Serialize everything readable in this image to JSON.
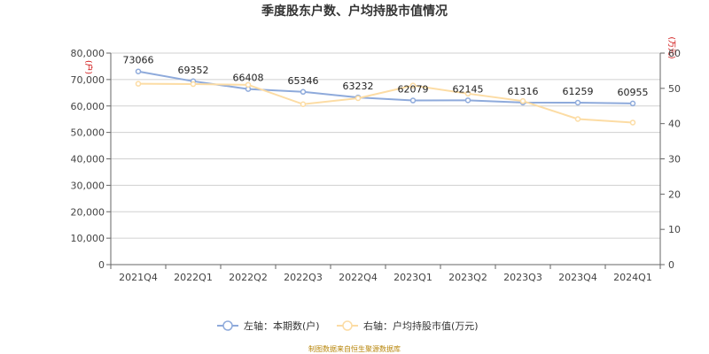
{
  "chart_data": {
    "type": "line",
    "title": "季度股东户数、户均持股市值情况",
    "categories": [
      "2021Q4",
      "2022Q1",
      "2022Q2",
      "2022Q3",
      "2022Q4",
      "2023Q1",
      "2023Q2",
      "2023Q3",
      "2023Q4",
      "2024Q1"
    ],
    "left_axis": {
      "unit": "(户)",
      "ylim": [
        0,
        80000
      ],
      "ticks": [
        "0",
        "10,000",
        "20,000",
        "30,000",
        "40,000",
        "50,000",
        "60,000",
        "70,000",
        "80,000"
      ]
    },
    "right_axis": {
      "unit": "(万元)",
      "ylim": [
        0,
        60
      ],
      "ticks": [
        "0",
        "10",
        "20",
        "30",
        "40",
        "50",
        "60"
      ]
    },
    "series": [
      {
        "name": "左轴：本期数(户)",
        "axis": "left",
        "color": "#8eaadb",
        "values": [
          73066,
          69352,
          66408,
          65346,
          63232,
          62079,
          62145,
          61316,
          61259,
          60955
        ],
        "labels": [
          "73066",
          "69352",
          "66408",
          "65346",
          "63232",
          "62079",
          "62145",
          "61316",
          "61259",
          "60955"
        ]
      },
      {
        "name": "右轴：户均持股市值(万元)",
        "axis": "right",
        "color": "#fcdca4",
        "values": [
          51.3,
          51.2,
          51.0,
          45.5,
          47.2,
          50.8,
          48.5,
          46.4,
          41.3,
          40.3
        ]
      }
    ],
    "grid": true,
    "legend_position": "bottom"
  },
  "footer": {
    "source": "制图数据来自恒生聚源数据库"
  }
}
